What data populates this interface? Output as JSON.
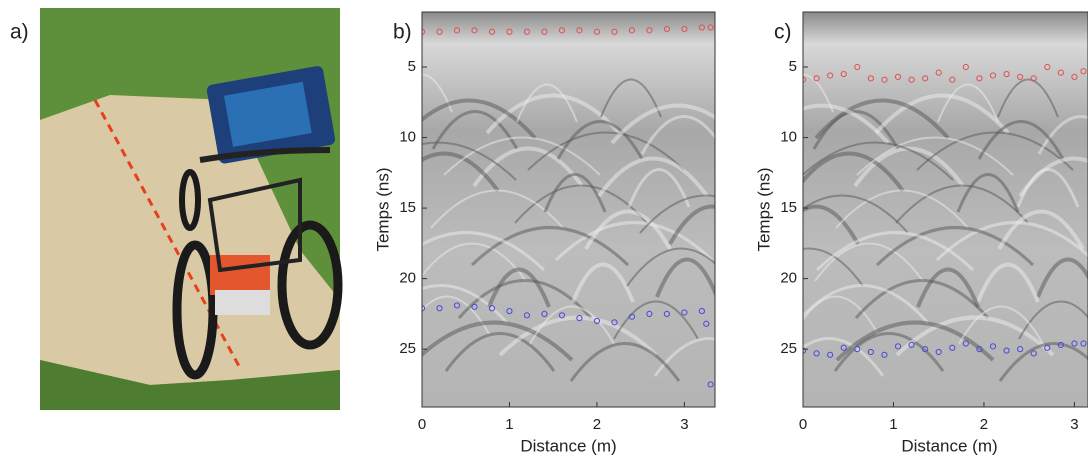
{
  "photo": {
    "label": "a)"
  },
  "chart_data": [
    {
      "type": "scatter",
      "title": "b)",
      "xlabel": "Distance (m)",
      "ylabel": "Temps (ns)",
      "xlim": [
        0,
        3.35
      ],
      "ylim": [
        1.1,
        29.1
      ],
      "y_reversed": true,
      "xticks": [
        0,
        1,
        2,
        3
      ],
      "yticks": [
        5,
        10,
        15,
        20,
        25
      ],
      "series": [
        {
          "color": "#e05050",
          "x": [
            0,
            0.2,
            0.4,
            0.6,
            0.8,
            1.0,
            1.2,
            1.4,
            1.6,
            1.8,
            2.0,
            2.2,
            2.4,
            2.6,
            2.8,
            3.0,
            3.2,
            3.3
          ],
          "values": [
            2.5,
            2.5,
            2.4,
            2.4,
            2.5,
            2.5,
            2.5,
            2.5,
            2.4,
            2.4,
            2.5,
            2.5,
            2.4,
            2.4,
            2.3,
            2.3,
            2.2,
            2.2
          ]
        },
        {
          "color": "#4a4ad8",
          "x": [
            0,
            0.2,
            0.4,
            0.6,
            0.8,
            1.0,
            1.2,
            1.4,
            1.6,
            1.8,
            2.0,
            2.2,
            2.4,
            2.6,
            2.8,
            3.0,
            3.2,
            3.25,
            3.3
          ],
          "values": [
            22.1,
            22.1,
            21.9,
            22.0,
            22.1,
            22.3,
            22.6,
            22.5,
            22.6,
            22.8,
            23.0,
            23.1,
            22.7,
            22.5,
            22.5,
            22.4,
            22.3,
            23.2,
            27.5
          ]
        }
      ]
    },
    {
      "type": "scatter",
      "title": "c)",
      "xlabel": "Distance (m)",
      "ylabel": "Temps (ns)",
      "xlim": [
        0,
        3.15
      ],
      "ylim": [
        1.1,
        29.1
      ],
      "y_reversed": true,
      "xticks": [
        0,
        1,
        2,
        3
      ],
      "yticks": [
        5,
        10,
        15,
        20,
        25
      ],
      "series": [
        {
          "color": "#e05050",
          "x": [
            0,
            0.15,
            0.3,
            0.45,
            0.6,
            0.75,
            0.9,
            1.05,
            1.2,
            1.35,
            1.5,
            1.65,
            1.8,
            1.95,
            2.1,
            2.25,
            2.4,
            2.55,
            2.7,
            2.85,
            3.0,
            3.1
          ],
          "values": [
            5.9,
            5.8,
            5.6,
            5.5,
            5.0,
            5.8,
            5.9,
            5.7,
            5.9,
            5.8,
            5.4,
            5.9,
            5.0,
            5.8,
            5.6,
            5.5,
            5.7,
            5.8,
            5.0,
            5.4,
            5.7,
            5.3
          ]
        },
        {
          "color": "#4a4ad8",
          "x": [
            0,
            0.15,
            0.3,
            0.45,
            0.6,
            0.75,
            0.9,
            1.05,
            1.2,
            1.35,
            1.5,
            1.65,
            1.8,
            1.95,
            2.1,
            2.25,
            2.4,
            2.55,
            2.7,
            2.85,
            3.0,
            3.1
          ],
          "values": [
            25.1,
            25.3,
            25.4,
            24.9,
            25.0,
            25.2,
            25.4,
            24.8,
            24.7,
            25.0,
            25.2,
            24.9,
            24.6,
            25.0,
            24.8,
            25.1,
            25.0,
            25.3,
            24.9,
            24.7,
            24.6,
            24.6
          ]
        }
      ]
    }
  ]
}
